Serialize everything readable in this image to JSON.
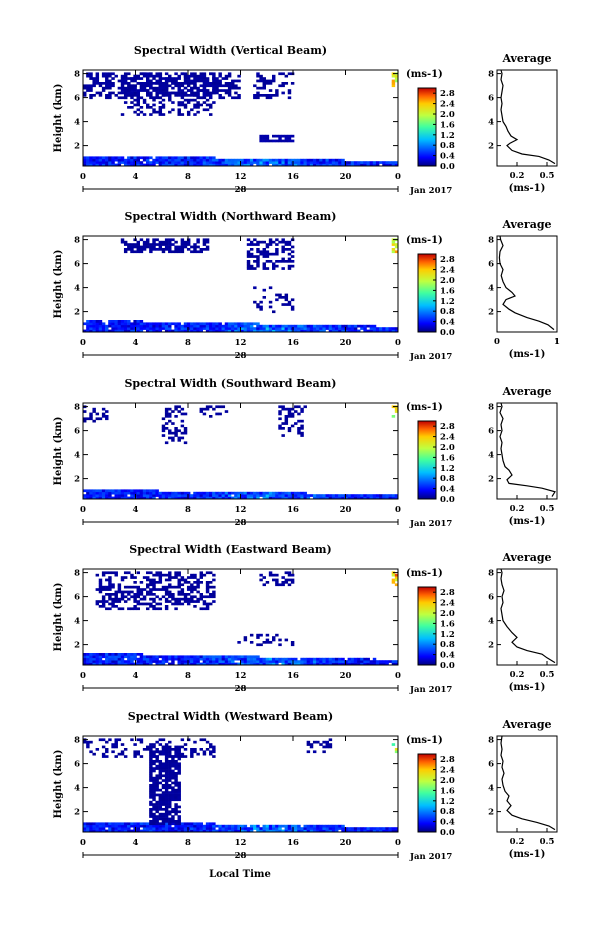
{
  "figure": {
    "time_label": "Local Time",
    "date_marker": "28",
    "date_caption": "Jan 2017"
  },
  "chart_data": [
    {
      "type": "heatmap",
      "title": "Spectral Width (Vertical Beam)",
      "ylabel": "Height (km)",
      "xlabel": "Local Time",
      "x_ticks": [
        "0",
        "4",
        "8",
        "12",
        "16",
        "20",
        "0"
      ],
      "xlim": [
        0,
        24
      ],
      "y_ticks": [
        "2",
        "4",
        "6",
        "8"
      ],
      "ylim": [
        0.3,
        8.3
      ],
      "colorbar": {
        "unit": "(ms-1)",
        "ticks": [
          "0.0",
          "0.4",
          "0.8",
          "1.2",
          "1.6",
          "2.0",
          "2.4",
          "2.8"
        ],
        "range": [
          0,
          3
        ]
      },
      "average": {
        "title": "Average",
        "xlabel": "(ms-1)",
        "x_ticks": [
          "0.2",
          "0.5"
        ],
        "xlim": [
          0,
          0.6
        ],
        "y_ticks": [
          "2",
          "4",
          "6",
          "8"
        ],
        "ylim": [
          0.3,
          8.3
        ],
        "profile": [
          [
            0.58,
            0.5
          ],
          [
            0.52,
            0.8
          ],
          [
            0.42,
            1.1
          ],
          [
            0.25,
            1.3
          ],
          [
            0.15,
            1.6
          ],
          [
            0.1,
            2.0
          ],
          [
            0.13,
            2.2
          ],
          [
            0.2,
            2.5
          ],
          [
            0.14,
            2.8
          ],
          [
            0.11,
            3.2
          ],
          [
            0.09,
            3.6
          ],
          [
            0.06,
            4.0
          ],
          [
            0.05,
            4.5
          ],
          [
            0.04,
            5.0
          ],
          [
            0.05,
            5.5
          ],
          [
            0.04,
            6.0
          ],
          [
            0.05,
            6.5
          ],
          [
            0.06,
            7.0
          ],
          [
            0.04,
            7.5
          ],
          [
            0.05,
            8.0
          ],
          [
            0.04,
            8.3
          ]
        ]
      },
      "echo_regions": [
        {
          "x": [
            0,
            24
          ],
          "y": [
            0.4,
            1.2
          ],
          "w": 0.35,
          "type": "bl"
        },
        {
          "x": [
            0,
            12
          ],
          "y": [
            6.0,
            8.0
          ],
          "w": 0.05,
          "density": 0.55
        },
        {
          "x": [
            3,
            10
          ],
          "y": [
            4.5,
            8.0
          ],
          "w": 0.05,
          "density": 0.4
        },
        {
          "x": [
            13,
            16
          ],
          "y": [
            6.0,
            8.0
          ],
          "w": 0.05,
          "density": 0.35
        },
        {
          "x": [
            13.5,
            16
          ],
          "y": [
            2.4,
            2.9
          ],
          "w": 0.08,
          "density": 0.8
        },
        {
          "x": [
            23.5,
            24
          ],
          "y": [
            7.0,
            8.0
          ],
          "w": 2.2,
          "density": 0.6
        }
      ]
    },
    {
      "type": "heatmap",
      "title": "Spectral Width (Northward Beam)",
      "ylabel": "Height (km)",
      "xlabel": "Local Time",
      "x_ticks": [
        "0",
        "4",
        "8",
        "12",
        "16",
        "20",
        "0"
      ],
      "xlim": [
        0,
        24
      ],
      "y_ticks": [
        "2",
        "4",
        "6",
        "8"
      ],
      "ylim": [
        0.3,
        8.3
      ],
      "colorbar": {
        "unit": "(ms-1)",
        "ticks": [
          "0.0",
          "0.4",
          "0.8",
          "1.2",
          "1.6",
          "2.0",
          "2.4",
          "2.8"
        ],
        "range": [
          0,
          3
        ]
      },
      "average": {
        "title": "Average",
        "xlabel": "(ms-1)",
        "x_ticks": [
          "0",
          "1",
          "1"
        ],
        "xlim": [
          0,
          1
        ],
        "y_ticks": [
          "2",
          "4",
          "6",
          "8"
        ],
        "ylim": [
          0.3,
          8.3
        ],
        "profile": [
          [
            0.95,
            0.5
          ],
          [
            0.85,
            0.9
          ],
          [
            0.7,
            1.2
          ],
          [
            0.5,
            1.5
          ],
          [
            0.3,
            1.9
          ],
          [
            0.2,
            2.2
          ],
          [
            0.1,
            2.6
          ],
          [
            0.15,
            3.0
          ],
          [
            0.3,
            3.3
          ],
          [
            0.25,
            3.6
          ],
          [
            0.15,
            4.0
          ],
          [
            0.1,
            4.5
          ],
          [
            0.07,
            5.0
          ],
          [
            0.1,
            5.5
          ],
          [
            0.05,
            6.0
          ],
          [
            0.04,
            6.5
          ],
          [
            0.05,
            7.0
          ],
          [
            0.1,
            7.5
          ],
          [
            0.06,
            8.0
          ],
          [
            0.05,
            8.3
          ]
        ]
      },
      "echo_regions": [
        {
          "x": [
            0,
            24
          ],
          "y": [
            0.4,
            1.3
          ],
          "w": 0.35,
          "type": "bl"
        },
        {
          "x": [
            3,
            9.5
          ],
          "y": [
            7.0,
            8.0
          ],
          "w": 0.05,
          "density": 0.6
        },
        {
          "x": [
            12.5,
            16
          ],
          "y": [
            5.5,
            8.0
          ],
          "w": 0.05,
          "density": 0.5
        },
        {
          "x": [
            13,
            16
          ],
          "y": [
            2.0,
            4.0
          ],
          "w": 0.05,
          "density": 0.2
        },
        {
          "x": [
            23.5,
            24
          ],
          "y": [
            7.0,
            8.0
          ],
          "w": 2.2,
          "density": 0.6
        }
      ]
    },
    {
      "type": "heatmap",
      "title": "Spectral Width (Southward Beam)",
      "ylabel": "Height (km)",
      "xlabel": "Local Time",
      "x_ticks": [
        "0",
        "4",
        "8",
        "12",
        "16",
        "20",
        "0"
      ],
      "xlim": [
        0,
        24
      ],
      "y_ticks": [
        "2",
        "4",
        "6",
        "8"
      ],
      "ylim": [
        0.3,
        8.3
      ],
      "colorbar": {
        "unit": "(ms-1)",
        "ticks": [
          "0.0",
          "0.4",
          "0.8",
          "1.2",
          "1.6",
          "2.0",
          "2.4",
          "2.8"
        ],
        "range": [
          0,
          3
        ]
      },
      "average": {
        "title": "Average",
        "xlabel": "(ms-1)",
        "x_ticks": [
          "0.2",
          "0.5"
        ],
        "xlim": [
          0,
          0.6
        ],
        "y_ticks": [
          "2",
          "4",
          "6",
          "8"
        ],
        "ylim": [
          0.3,
          8.3
        ],
        "profile": [
          [
            0.55,
            0.5
          ],
          [
            0.58,
            0.9
          ],
          [
            0.45,
            1.2
          ],
          [
            0.3,
            1.4
          ],
          [
            0.12,
            1.6
          ],
          [
            0.1,
            1.9
          ],
          [
            0.15,
            2.3
          ],
          [
            0.12,
            2.7
          ],
          [
            0.08,
            3.0
          ],
          [
            0.06,
            3.5
          ],
          [
            0.05,
            4.0
          ],
          [
            0.04,
            4.5
          ],
          [
            0.05,
            5.0
          ],
          [
            0.03,
            5.5
          ],
          [
            0.05,
            6.0
          ],
          [
            0.04,
            6.5
          ],
          [
            0.06,
            7.0
          ],
          [
            0.03,
            7.5
          ],
          [
            0.05,
            8.0
          ],
          [
            0.04,
            8.3
          ]
        ]
      },
      "echo_regions": [
        {
          "x": [
            0,
            24
          ],
          "y": [
            0.4,
            1.1
          ],
          "w": 0.3,
          "type": "bl"
        },
        {
          "x": [
            0,
            2
          ],
          "y": [
            6.8,
            8.0
          ],
          "w": 0.05,
          "density": 0.3
        },
        {
          "x": [
            6,
            8
          ],
          "y": [
            5.0,
            8.0
          ],
          "w": 0.05,
          "density": 0.4
        },
        {
          "x": [
            9,
            11
          ],
          "y": [
            7.0,
            8.0
          ],
          "w": 0.05,
          "density": 0.3
        },
        {
          "x": [
            15,
            17
          ],
          "y": [
            5.5,
            8.0
          ],
          "w": 0.05,
          "density": 0.4
        },
        {
          "x": [
            23.5,
            24
          ],
          "y": [
            7.0,
            8.0
          ],
          "w": 2.0,
          "density": 0.5
        }
      ]
    },
    {
      "type": "heatmap",
      "title": "Spectral Width (Eastward Beam)",
      "ylabel": "Height (km)",
      "xlabel": "Local Time",
      "x_ticks": [
        "0",
        "4",
        "8",
        "12",
        "16",
        "20",
        "0"
      ],
      "xlim": [
        0,
        24
      ],
      "y_ticks": [
        "2",
        "4",
        "6",
        "8"
      ],
      "ylim": [
        0.3,
        8.3
      ],
      "colorbar": {
        "unit": "(ms-1)",
        "ticks": [
          "0.0",
          "0.4",
          "0.8",
          "1.2",
          "1.6",
          "2.0",
          "2.4",
          "2.8"
        ],
        "range": [
          0,
          3
        ]
      },
      "average": {
        "title": "Average",
        "xlabel": "(ms-1)",
        "x_ticks": [
          "0.2",
          "0.5"
        ],
        "xlim": [
          0,
          0.6
        ],
        "y_ticks": [
          "2",
          "4",
          "6",
          "8"
        ],
        "ylim": [
          0.3,
          8.3
        ],
        "profile": [
          [
            0.58,
            0.5
          ],
          [
            0.5,
            0.9
          ],
          [
            0.45,
            1.2
          ],
          [
            0.3,
            1.5
          ],
          [
            0.2,
            1.8
          ],
          [
            0.15,
            2.2
          ],
          [
            0.2,
            2.6
          ],
          [
            0.15,
            3.0
          ],
          [
            0.1,
            3.5
          ],
          [
            0.06,
            4.0
          ],
          [
            0.05,
            4.5
          ],
          [
            0.04,
            5.0
          ],
          [
            0.06,
            5.5
          ],
          [
            0.05,
            6.0
          ],
          [
            0.07,
            6.5
          ],
          [
            0.05,
            7.0
          ],
          [
            0.04,
            7.5
          ],
          [
            0.05,
            8.0
          ],
          [
            0.04,
            8.3
          ]
        ]
      },
      "echo_regions": [
        {
          "x": [
            0,
            24
          ],
          "y": [
            0.4,
            1.3
          ],
          "w": 0.4,
          "type": "bl"
        },
        {
          "x": [
            1,
            10
          ],
          "y": [
            5.0,
            8.0
          ],
          "w": 0.05,
          "density": 0.5
        },
        {
          "x": [
            13.5,
            16
          ],
          "y": [
            7.0,
            8.0
          ],
          "w": 0.05,
          "density": 0.4
        },
        {
          "x": [
            11,
            16
          ],
          "y": [
            2.0,
            2.8
          ],
          "w": 0.05,
          "density": 0.25
        },
        {
          "x": [
            23.5,
            24
          ],
          "y": [
            7.0,
            8.0
          ],
          "w": 2.4,
          "density": 0.6
        }
      ]
    },
    {
      "type": "heatmap",
      "title": "Spectral Width (Westward Beam)",
      "ylabel": "Height (km)",
      "xlabel": "Local Time",
      "x_ticks": [
        "0",
        "4",
        "8",
        "12",
        "16",
        "20",
        "0"
      ],
      "xlim": [
        0,
        24
      ],
      "y_ticks": [
        "2",
        "4",
        "6",
        "8"
      ],
      "ylim": [
        0.3,
        8.3
      ],
      "colorbar": {
        "unit": "(ms-1)",
        "ticks": [
          "0.0",
          "0.4",
          "0.8",
          "1.2",
          "1.6",
          "2.0",
          "2.4",
          "2.8"
        ],
        "range": [
          0,
          3
        ]
      },
      "average": {
        "title": "Average",
        "xlabel": "(ms-1)",
        "x_ticks": [
          "0.2",
          "0.5"
        ],
        "xlim": [
          0,
          0.6
        ],
        "y_ticks": [
          "2",
          "4",
          "6",
          "8"
        ],
        "ylim": [
          0.3,
          8.3
        ],
        "profile": [
          [
            0.58,
            0.5
          ],
          [
            0.52,
            0.8
          ],
          [
            0.4,
            1.1
          ],
          [
            0.25,
            1.4
          ],
          [
            0.15,
            1.7
          ],
          [
            0.1,
            2.1
          ],
          [
            0.14,
            2.5
          ],
          [
            0.1,
            2.9
          ],
          [
            0.12,
            3.3
          ],
          [
            0.08,
            3.7
          ],
          [
            0.06,
            4.2
          ],
          [
            0.05,
            4.7
          ],
          [
            0.07,
            5.2
          ],
          [
            0.05,
            5.7
          ],
          [
            0.06,
            6.2
          ],
          [
            0.04,
            6.7
          ],
          [
            0.05,
            7.2
          ],
          [
            0.04,
            7.7
          ],
          [
            0.05,
            8.3
          ]
        ]
      },
      "echo_regions": [
        {
          "x": [
            0,
            24
          ],
          "y": [
            0.4,
            1.2
          ],
          "w": 0.3,
          "type": "bl"
        },
        {
          "x": [
            5,
            7.5
          ],
          "y": [
            1.0,
            7.5
          ],
          "w": 0.05,
          "density": 0.8
        },
        {
          "x": [
            0,
            10
          ],
          "y": [
            6.5,
            8.0
          ],
          "w": 0.05,
          "density": 0.3
        },
        {
          "x": [
            17,
            19
          ],
          "y": [
            7.0,
            8.0
          ],
          "w": 0.05,
          "density": 0.2
        },
        {
          "x": [
            23.5,
            24
          ],
          "y": [
            7.0,
            8.0
          ],
          "w": 1.8,
          "density": 0.4
        }
      ]
    }
  ]
}
